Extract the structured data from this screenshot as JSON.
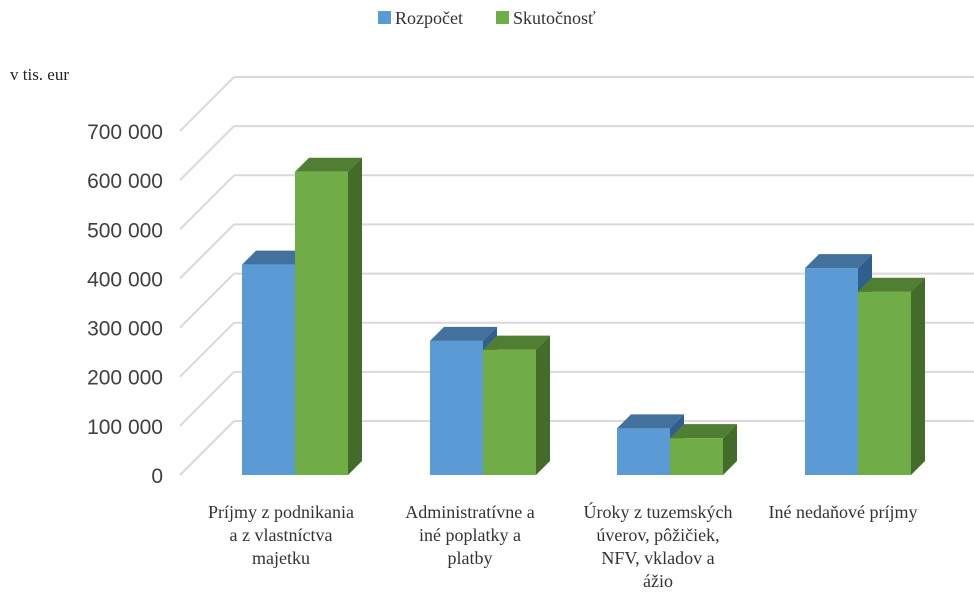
{
  "chart_data": {
    "type": "bar",
    "y_unit_label": "v tis. eur",
    "categories": [
      [
        "Príjmy z podnikania",
        "a z vlastníctva",
        "majetku"
      ],
      [
        "Administratívne a",
        "iné poplatky a",
        "platby"
      ],
      [
        "Úroky z tuzemských",
        "úverov, pôžičiek,",
        "NFV, vkladov a",
        "ážio"
      ],
      [
        "Iné nedaňové príjmy"
      ]
    ],
    "series": [
      {
        "name": "Rozpočet",
        "values": [
          428000,
          273000,
          95000,
          421000
        ]
      },
      {
        "name": "Skutočnosť",
        "values": [
          617000,
          255000,
          75000,
          373000
        ]
      }
    ],
    "yticks": [
      0,
      100000,
      200000,
      300000,
      400000,
      500000,
      600000,
      700000
    ],
    "ytick_labels": [
      "0",
      "100 000",
      "200 000",
      "300 000",
      "400 000",
      "500 000",
      "600 000",
      "700 000"
    ],
    "ylim": [
      0,
      700000
    ],
    "grid": true,
    "legend_position": "top-center",
    "style": "3d-clustered-column",
    "colors": {
      "Rozpočet": {
        "front": "#5b9bd5",
        "top": "#41719c",
        "side": "#2e5f8f"
      },
      "Skutočnosť": {
        "front": "#70ad47",
        "top": "#507e32",
        "side": "#436b2a"
      },
      "grid": "#d9d9d9"
    }
  }
}
